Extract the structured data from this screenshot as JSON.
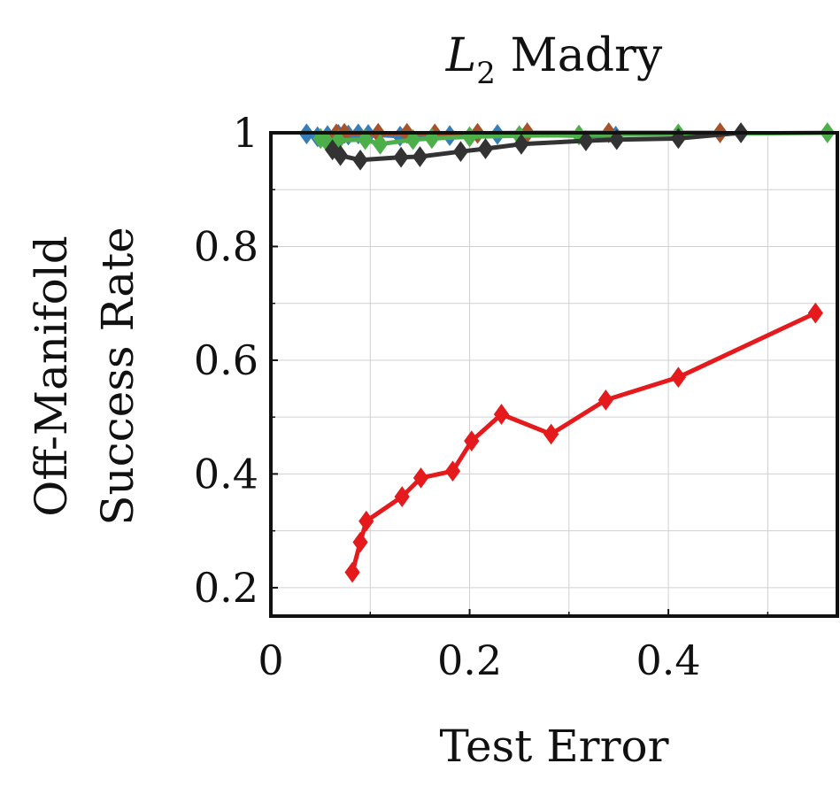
{
  "chart_data": {
    "type": "line",
    "title": "L2 Madry",
    "title_parts": {
      "base": "L",
      "subscript": "2",
      "rest": " Madry"
    },
    "xlabel": "Test Error",
    "ylabel_lines": [
      "Off-Manifold",
      "Success Rate"
    ],
    "xlim": [
      0,
      0.57
    ],
    "ylim": [
      0.15,
      1.0
    ],
    "x_ticks": [
      0,
      0.2,
      0.4
    ],
    "x_tick_labels": [
      "0",
      "0.2",
      "0.4"
    ],
    "y_ticks": [
      0.2,
      0.4,
      0.6,
      0.8,
      1.0
    ],
    "y_tick_labels": [
      "0.2",
      "0.4",
      "0.6",
      "0.8",
      "1"
    ],
    "grid": true,
    "series": [
      {
        "color": "#e41a1c",
        "marker": "diamond",
        "x": [
          0.082,
          0.09,
          0.096,
          0.132,
          0.151,
          0.183,
          0.202,
          0.232,
          0.282,
          0.337,
          0.41,
          0.548
        ],
        "y": [
          0.227,
          0.28,
          0.317,
          0.36,
          0.393,
          0.405,
          0.458,
          0.505,
          0.47,
          0.53,
          0.57,
          0.683
        ]
      },
      {
        "color": "#333333",
        "marker": "diamond",
        "x": [
          0.062,
          0.07,
          0.09,
          0.131,
          0.15,
          0.191,
          0.216,
          0.252,
          0.317,
          0.348,
          0.41,
          0.473
        ],
        "y": [
          0.97,
          0.96,
          0.952,
          0.957,
          0.958,
          0.967,
          0.972,
          0.98,
          0.986,
          0.988,
          0.99,
          1.0
        ]
      },
      {
        "color": "#377eb8",
        "marker": "diamond",
        "x": [
          0.036,
          0.047,
          0.057,
          0.068,
          0.078,
          0.088,
          0.098,
          0.13,
          0.18,
          0.228,
          0.347
        ],
        "y": [
          0.998,
          0.993,
          0.995,
          0.997,
          0.996,
          0.998,
          0.997,
          0.994,
          0.995,
          0.997,
          0.994
        ]
      },
      {
        "color": "#a6522b",
        "marker": "diamond",
        "x": [
          0.066,
          0.074,
          0.108,
          0.137,
          0.165,
          0.208,
          0.258,
          0.34,
          0.452
        ],
        "y": [
          0.998,
          0.999,
          0.999,
          0.999,
          0.998,
          0.999,
          1.0,
          1.0,
          1.0
        ]
      },
      {
        "color": "#4daf4a",
        "marker": "diamond",
        "x": [
          0.05,
          0.056,
          0.068,
          0.095,
          0.11,
          0.143,
          0.162,
          0.2,
          0.25,
          0.31,
          0.41,
          0.56
        ],
        "y": [
          0.99,
          0.985,
          0.987,
          0.988,
          0.98,
          0.988,
          0.99,
          0.993,
          0.995,
          0.996,
          0.998,
          1.0
        ]
      }
    ]
  }
}
